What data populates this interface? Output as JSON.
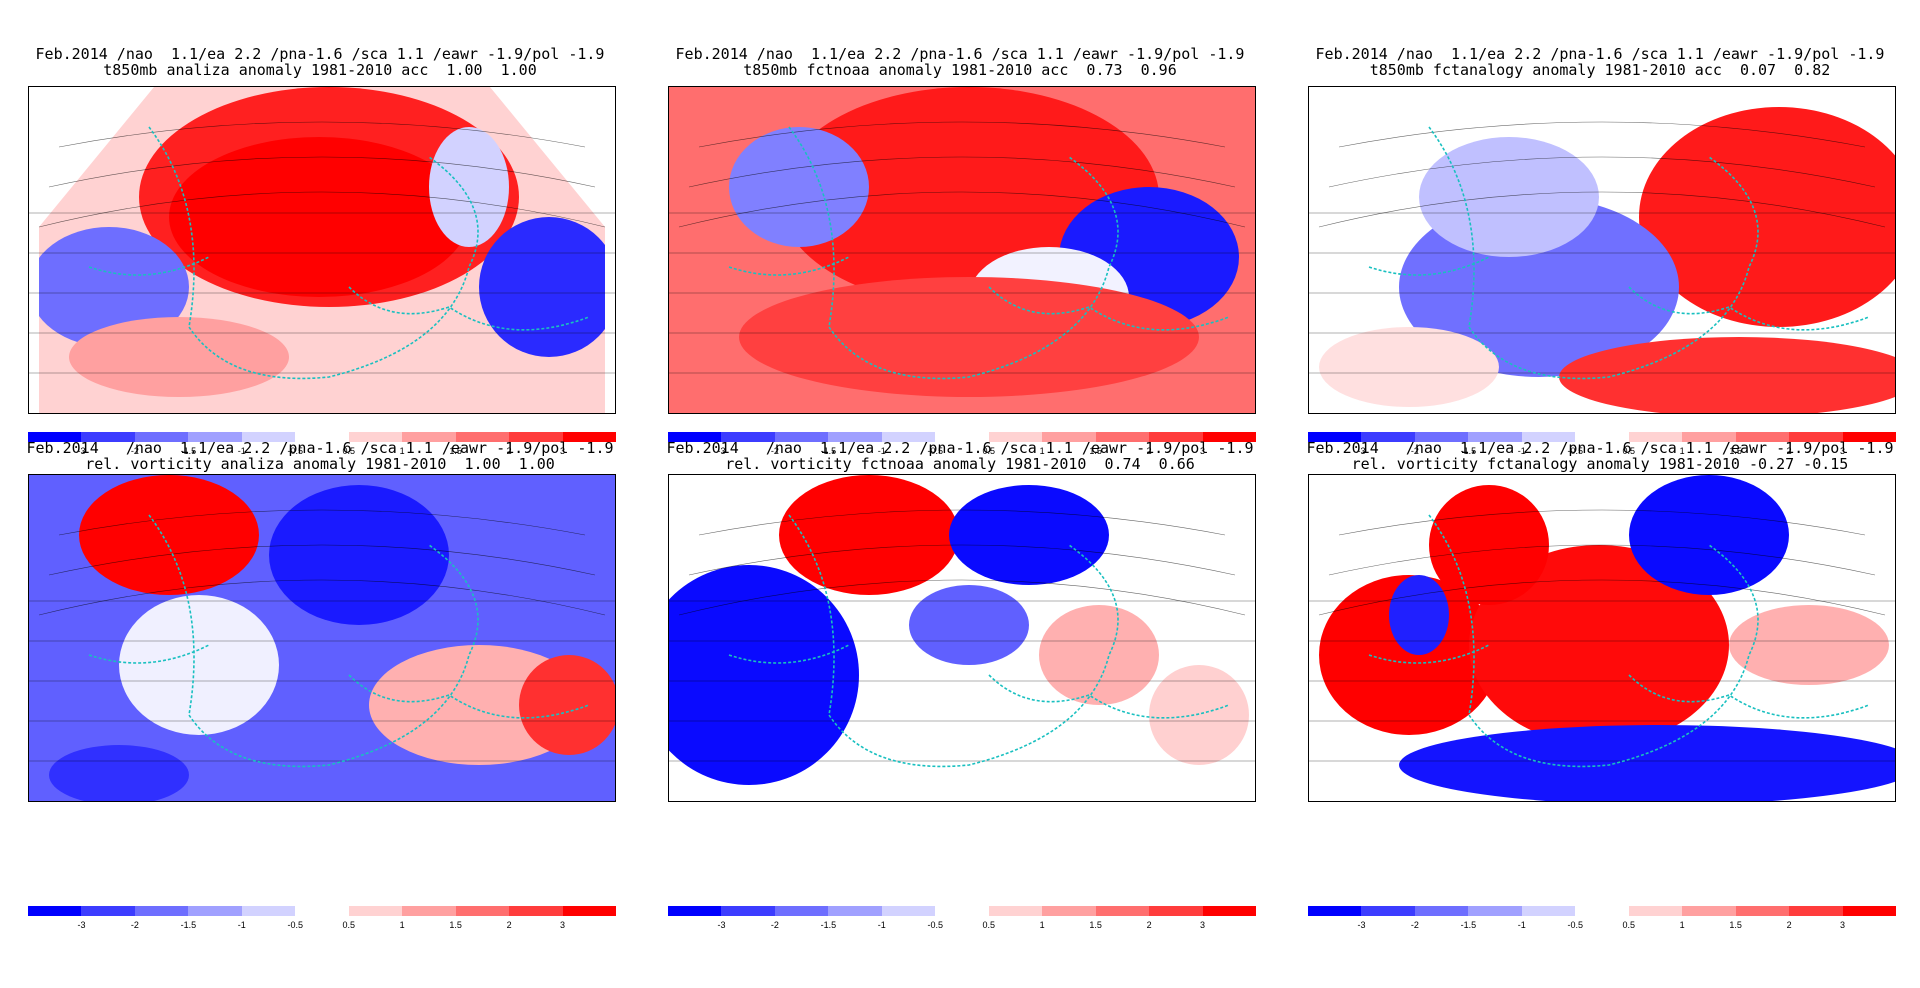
{
  "header_line": "Feb.2014  /nao  1.1/ea 2.2 /pna-1.6 /sca 1.1 /eawr -1.9/pol -1.9",
  "panels": [
    {
      "title1": "Feb.2014 /nao  1.1/ea 2.2 /pna-1.6 /sca 1.1 /eawr -1.9/pol -1.9",
      "title2": "t850mb analiza anomaly 1981-2010 acc  1.00  1.00"
    },
    {
      "title1": "Feb.2014 /nao  1.1/ea 2.2 /pna-1.6 /sca 1.1 /eawr -1.9/pol -1.9",
      "title2": "t850mb fctnoaa anomaly 1981-2010 acc  0.73  0.96"
    },
    {
      "title1": "Feb.2014 /nao  1.1/ea 2.2 /pna-1.6 /sca 1.1 /eawr -1.9/pol -1.9",
      "title2": "t850mb fctanalogy anomaly 1981-2010 acc  0.07  0.82"
    },
    {
      "title1": "Feb.2014   /nao  1.1/ea 2.2 /pna-1.6 /sca 1.1 /eawr -1.9/pol -1.9",
      "title2": "rel. vorticity analiza anomaly 1981-2010  1.00  1.00"
    },
    {
      "title1": "Feb.2014   /nao  1.1/ea 2.2 /pna-1.6 /sca 1.1 /eawr -1.9/pol -1.9",
      "title2": "rel. vorticity fctnoaa anomaly 1981-2010  0.74  0.66"
    },
    {
      "title1": "Feb.2014   /nao  1.1/ea 2.2 /pna-1.6 /sca 1.1 /eawr -1.9/pol -1.9",
      "title2": "rel. vorticity fctanalogy anomaly 1981-2010 -0.27 -0.15"
    }
  ],
  "colorbar": {
    "ticks": [
      "-3",
      "-2",
      "-1.5",
      "-1",
      "-0.5",
      "0.5",
      "1",
      "1.5",
      "2",
      "3"
    ],
    "colors": [
      "#0000ff",
      "#3c3cff",
      "#6e6eff",
      "#a0a0ff",
      "#d2d2ff",
      "#ffffff",
      "#ffd2d2",
      "#ffa0a0",
      "#ff6e6e",
      "#ff3c3c",
      "#ff0000"
    ]
  }
}
